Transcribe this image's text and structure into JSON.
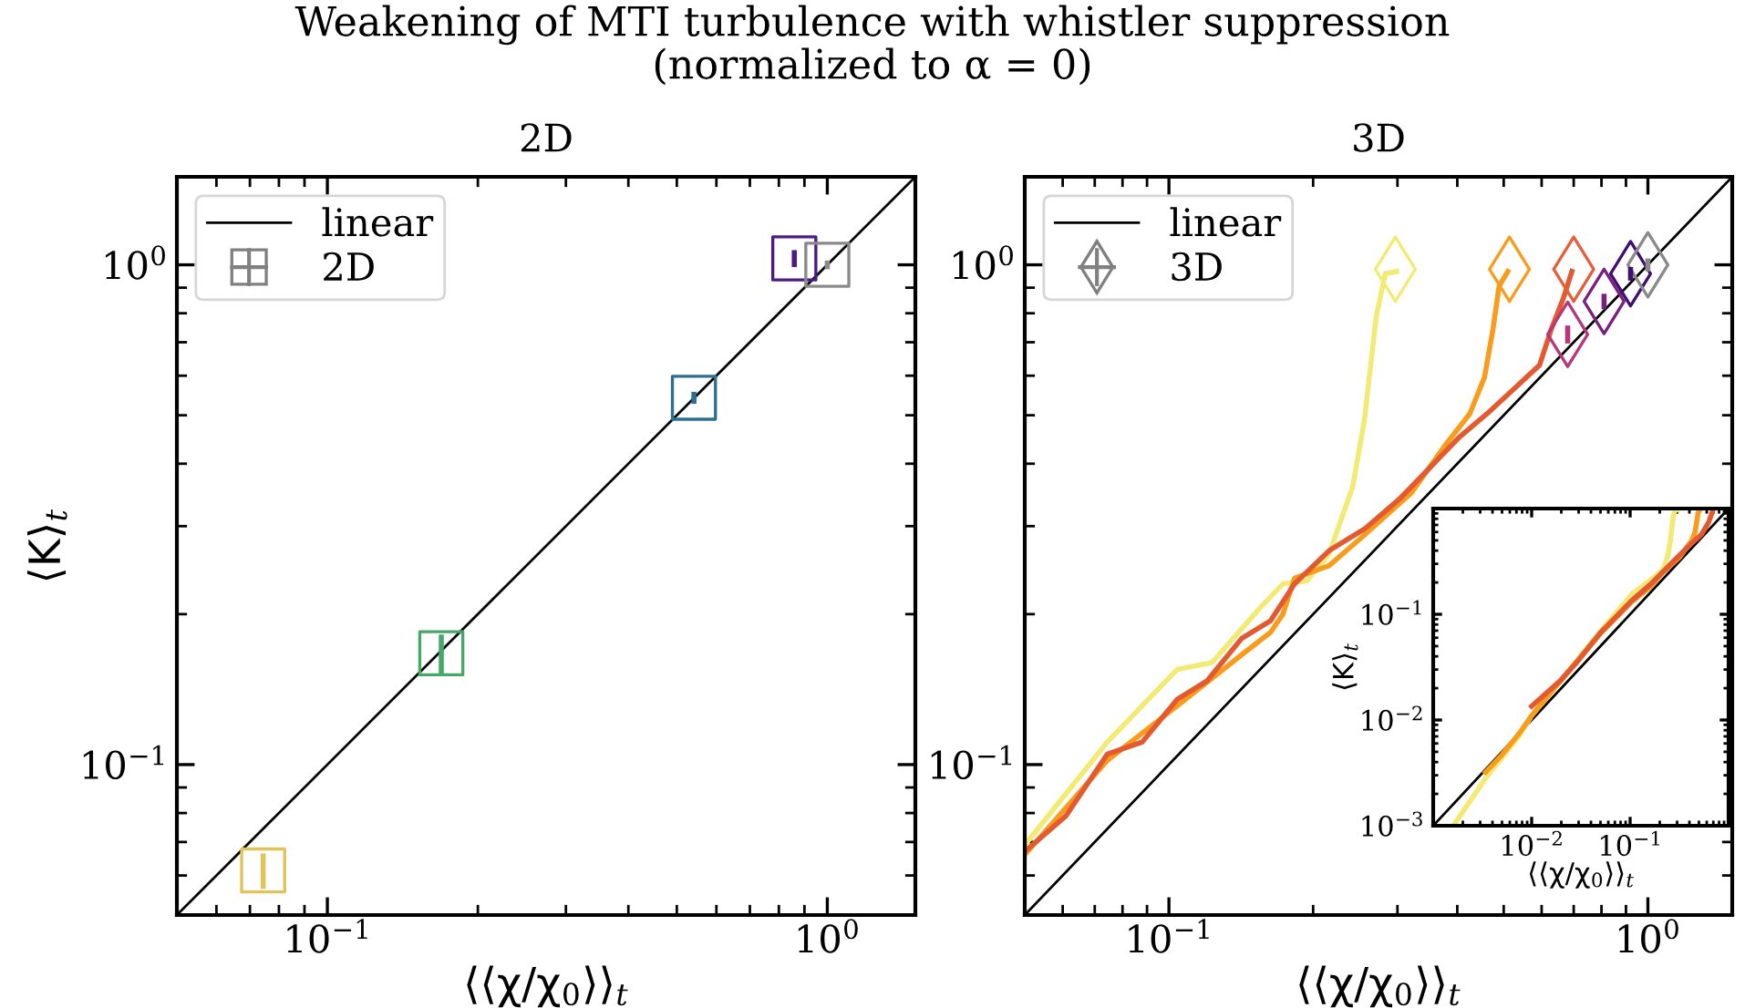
{
  "chart_data": [
    {
      "type": "scatter",
      "title": "2D",
      "xlabel": "⟨⟨χ/χ$_{0}$⟩⟩$_{t}$",
      "ylabel": "⟨K⟩$_{t}$",
      "annotations": [
        "Weakening of MTI turbulence with whistler suppression\n(normalized to α = 0)"
      ],
      "log": "xy",
      "xlim": [
        0.05,
        1.5
      ],
      "ylim": [
        0.05,
        1.5
      ],
      "xticks": [
        {
          "value": 0.1,
          "label": "10$^{−1}$"
        },
        {
          "value": 1,
          "label": "10$^{0}$"
        }
      ],
      "yticks": [
        {
          "value": 0.1,
          "label": "10$^{−1}$"
        },
        {
          "value": 1,
          "label": "10$^{0}$"
        }
      ],
      "grid": false,
      "legend": "top left",
      "series": [
        {
          "name": "linear",
          "type": "line",
          "color": "#000000",
          "x": [
            0.05,
            1.5
          ],
          "values": [
            0.05,
            1.5
          ]
        },
        {
          "name": "2D",
          "marker": "square",
          "color": "#808080",
          "x": [
            0.0744,
            0.169,
            0.541,
            0.859,
            1.0
          ],
          "values": [
            0.0614,
            0.167,
            0.542,
            1.03,
            1.0
          ],
          "errors": [
            0.005,
            0.015,
            0.015,
            0.04,
            0.02
          ],
          "colors": [
            "#e2c35a",
            "#45a869",
            "#2c7090",
            "#4c1a86",
            "#8a8a8a"
          ]
        }
      ]
    },
    {
      "type": "line",
      "title": "3D",
      "xlabel": "⟨⟨χ/χ$_{0}$⟩⟩$_{t}$",
      "log": "xy",
      "xlim": [
        0.05,
        1.5
      ],
      "ylim": [
        0.05,
        1.5
      ],
      "xticks": [
        {
          "value": 0.1,
          "label": "10$^{−1}$"
        },
        {
          "value": 1,
          "label": "10$^{0}$"
        }
      ],
      "yticks": [
        {
          "value": 0.1,
          "label": "10$^{−1}$"
        },
        {
          "value": 1,
          "label": "10$^{0}$"
        }
      ],
      "grid": false,
      "legend": "top left",
      "series": [
        {
          "name": "linear",
          "type": "line",
          "color": "#000000",
          "x": [
            0.05,
            1.5
          ],
          "values": [
            0.05,
            1.5
          ]
        },
        {
          "color": "#f3ea74",
          "x": [
            0.05,
            0.0744,
            0.104,
            0.123,
            0.155,
            0.173,
            0.194,
            0.216,
            0.242,
            0.256,
            0.271,
            0.283,
            0.299
          ],
          "values": [
            0.069,
            0.111,
            0.155,
            0.16,
            0.206,
            0.23,
            0.233,
            0.264,
            0.36,
            0.49,
            0.789,
            0.96,
            0.97
          ]
        },
        {
          "color": "#f99b1b",
          "x": [
            0.05,
            0.0744,
            0.104,
            0.142,
            0.163,
            0.173,
            0.183,
            0.216,
            0.256,
            0.321,
            0.379,
            0.425,
            0.456,
            0.475,
            0.489,
            0.51
          ],
          "values": [
            0.066,
            0.102,
            0.131,
            0.166,
            0.184,
            0.2,
            0.236,
            0.25,
            0.288,
            0.35,
            0.438,
            0.504,
            0.596,
            0.745,
            0.906,
            0.97
          ]
        },
        {
          "color": "#e45a30",
          "x": [
            0.05,
            0.061,
            0.0744,
            0.088,
            0.104,
            0.12,
            0.142,
            0.163,
            0.183,
            0.216,
            0.256,
            0.303,
            0.349,
            0.402,
            0.462,
            0.532,
            0.594,
            0.629,
            0.666,
            0.694
          ],
          "values": [
            0.067,
            0.079,
            0.105,
            0.111,
            0.135,
            0.147,
            0.179,
            0.194,
            0.23,
            0.268,
            0.296,
            0.34,
            0.391,
            0.45,
            0.504,
            0.571,
            0.63,
            0.745,
            0.857,
            0.97
          ]
        },
        {
          "name": "3D",
          "type": "scatter",
          "marker": "diamond",
          "color": "#808080",
          "x": [
            0.297,
            0.514,
            0.7,
            0.68,
            0.81,
            0.92,
            1.0
          ],
          "values": [
            0.98,
            0.98,
            0.98,
            0.726,
            0.845,
            0.96,
            1.0
          ],
          "errors": [
            null,
            null,
            null,
            0.03,
            0.03,
            0.03,
            0.03
          ],
          "colors": [
            "#f3ea74",
            "#f99b1b",
            "#e75f3a",
            "#b5367a",
            "#7a2180",
            "#3f0f72",
            "#8a8a8a"
          ]
        }
      ]
    },
    {
      "type": "line",
      "xlabel": "⟨⟨χ/χ$_{0}$⟩⟩$_{t}$",
      "ylabel": "⟨K⟩$_{t}$",
      "log": "xy",
      "xlim": [
        0.001,
        1
      ],
      "ylim": [
        0.001,
        1
      ],
      "xticks": [
        {
          "value": 0.01,
          "label": "10$^{−2}$"
        },
        {
          "value": 0.1,
          "label": "10$^{−1}$"
        }
      ],
      "yticks": [
        {
          "value": 0.001,
          "label": "10$^{−3}$"
        },
        {
          "value": 0.01,
          "label": "10$^{−2}$"
        },
        {
          "value": 0.1,
          "label": "10$^{−1}$"
        }
      ],
      "grid": false,
      "series": [
        {
          "color": "#000000",
          "x": [
            0.001,
            1
          ],
          "values": [
            0.001,
            1
          ]
        },
        {
          "color": "#f3ea74",
          "x": [
            0.0016,
            0.0034,
            0.0074,
            0.01,
            0.02,
            0.05,
            0.104,
            0.155,
            0.216,
            0.242,
            0.256,
            0.271,
            0.283,
            0.299
          ],
          "values": [
            0.001,
            0.0028,
            0.007,
            0.011,
            0.024,
            0.069,
            0.155,
            0.206,
            0.264,
            0.36,
            0.49,
            0.789,
            0.96,
            0.97
          ]
        },
        {
          "color": "#f99b1b",
          "x": [
            0.0034,
            0.005,
            0.0075,
            0.01,
            0.02,
            0.03,
            0.05,
            0.104,
            0.163,
            0.216,
            0.321,
            0.425,
            0.456,
            0.475,
            0.489,
            0.51
          ],
          "values": [
            0.0032,
            0.0047,
            0.0075,
            0.011,
            0.024,
            0.037,
            0.066,
            0.131,
            0.184,
            0.25,
            0.35,
            0.504,
            0.596,
            0.745,
            0.906,
            0.97
          ]
        },
        {
          "color": "#e45a30",
          "x": [
            0.01,
            0.02,
            0.03,
            0.05,
            0.104,
            0.163,
            0.256,
            0.402,
            0.532,
            0.629,
            0.694
          ],
          "values": [
            0.0135,
            0.024,
            0.037,
            0.067,
            0.135,
            0.194,
            0.296,
            0.45,
            0.571,
            0.745,
            0.97
          ]
        }
      ]
    }
  ]
}
